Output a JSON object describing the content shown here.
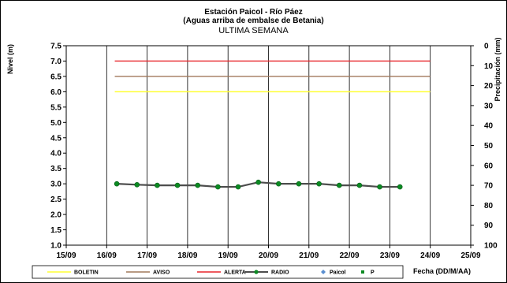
{
  "chart_data": {
    "type": "line",
    "title": "Estación Paicol  - Río Páez",
    "subtitle": "(Aguas arriba de embalse de Betania)",
    "period": "ULTIMA SEMANA",
    "xlabel": "Fecha  (DD/M/AA)",
    "ylabel": "Nivel (m)",
    "y2label": "Precipitación (mm)",
    "x_ticks": [
      "15/09",
      "16/09",
      "17/09",
      "18/09",
      "19/09",
      "20/09",
      "21/09",
      "22/09",
      "23/09",
      "24/09",
      "25/09"
    ],
    "x_range": [
      0,
      10
    ],
    "ylim": [
      1.0,
      7.5
    ],
    "y_ticks": [
      "1.0",
      "1.5",
      "2.0",
      "2.5",
      "3.0",
      "3.5",
      "4.0",
      "4.5",
      "5.0",
      "5.5",
      "6.0",
      "6.5",
      "7.0",
      "7.5"
    ],
    "y2lim": [
      0,
      100
    ],
    "y2_reversed": true,
    "y2_ticks": [
      "0",
      "10",
      "20",
      "30",
      "40",
      "50",
      "60",
      "70",
      "80",
      "90",
      "100"
    ],
    "grid": "vertical",
    "thresholds": [
      {
        "name": "BOLETIN",
        "value": 6.0,
        "x_range": [
          1.2,
          9.0
        ],
        "color": "#ffff33"
      },
      {
        "name": "AVISO",
        "value": 6.5,
        "x_range": [
          1.2,
          9.0
        ],
        "color": "#a0785a"
      },
      {
        "name": "ALERTA",
        "value": 7.0,
        "x_range": [
          1.2,
          9.0
        ],
        "color": "#e8252c"
      }
    ],
    "series": [
      {
        "name": "RADIO",
        "color": "#0c8a23",
        "x": [
          1.25,
          1.75,
          2.25,
          2.75,
          3.25,
          3.75,
          4.25,
          4.75,
          5.25,
          5.75,
          6.25,
          6.75,
          7.25,
          7.75,
          8.25
        ],
        "values": [
          3.0,
          2.97,
          2.95,
          2.95,
          2.95,
          2.9,
          2.9,
          3.05,
          3.0,
          3.0,
          3.0,
          2.95,
          2.95,
          2.9,
          2.9
        ]
      },
      {
        "name": "Paicol",
        "color": "#5b8fd0",
        "x": [],
        "values": []
      },
      {
        "name": "P",
        "color": "#0c8a23",
        "x": [],
        "values": []
      }
    ],
    "legend": {
      "position": "bottom"
    }
  }
}
